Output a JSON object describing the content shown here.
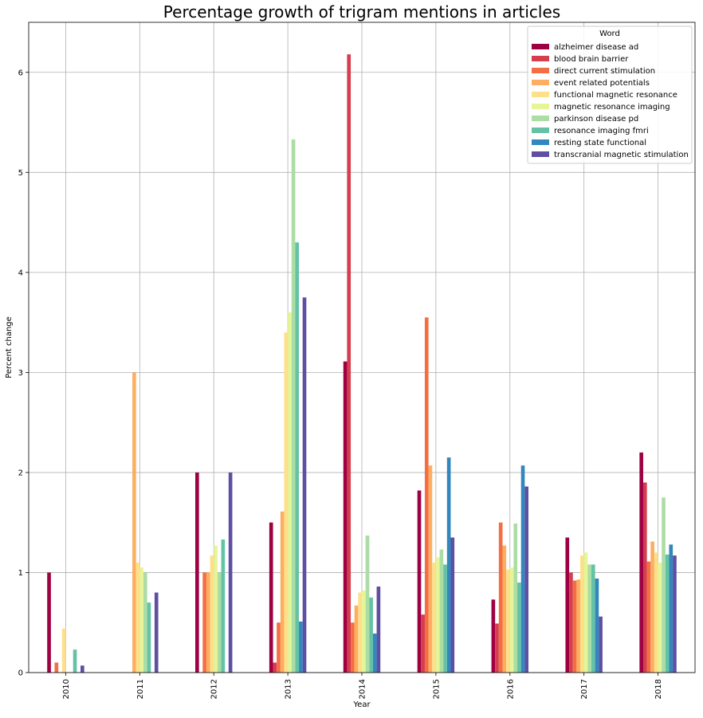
{
  "chart_data": {
    "type": "bar",
    "title": "Percentage growth of trigram mentions in articles",
    "xlabel": "Year",
    "ylabel": "Percent change",
    "categories": [
      "2010",
      "2011",
      "2012",
      "2013",
      "2014",
      "2015",
      "2016",
      "2017",
      "2018"
    ],
    "ylim": [
      0,
      6.5
    ],
    "yticks": [
      "0",
      "1",
      "2",
      "3",
      "4",
      "5",
      "6"
    ],
    "grid": true,
    "legend": {
      "title": "Word",
      "position": "top-right"
    },
    "series": [
      {
        "name": "alzheimer disease ad",
        "color": "#9e0142",
        "values": [
          1.0,
          0,
          2.0,
          1.5,
          3.11,
          1.82,
          0.73,
          1.35,
          2.2
        ]
      },
      {
        "name": "blood brain barrier",
        "color": "#d53e4f",
        "values": [
          0,
          0,
          0,
          0.1,
          6.18,
          0.58,
          0.49,
          1.0,
          1.9
        ]
      },
      {
        "name": "direct current stimulation",
        "color": "#f46d43",
        "values": [
          0.1,
          0,
          1.0,
          0.5,
          0.5,
          3.55,
          1.5,
          0.92,
          1.11
        ]
      },
      {
        "name": "event related potentials",
        "color": "#fdae61",
        "values": [
          0,
          3.0,
          1.0,
          1.61,
          0.67,
          2.07,
          1.27,
          0.93,
          1.31
        ]
      },
      {
        "name": "functional magnetic resonance",
        "color": "#fee08b",
        "values": [
          0.44,
          1.1,
          1.17,
          3.4,
          0.8,
          1.1,
          1.03,
          1.17,
          1.2
        ]
      },
      {
        "name": "magnetic resonance imaging",
        "color": "#e6f598",
        "values": [
          0,
          1.05,
          1.27,
          3.6,
          0.82,
          1.15,
          1.05,
          1.2,
          1.1
        ]
      },
      {
        "name": "parkinson disease pd",
        "color": "#abdda4",
        "values": [
          0,
          1.0,
          1.0,
          5.33,
          1.37,
          1.23,
          1.49,
          1.08,
          1.75
        ]
      },
      {
        "name": "resonance imaging fmri",
        "color": "#66c2a5",
        "values": [
          0.23,
          0.7,
          1.33,
          4.3,
          0.75,
          1.08,
          0.9,
          1.08,
          1.18
        ]
      },
      {
        "name": "resting state functional",
        "color": "#3288bd",
        "values": [
          0,
          0,
          0,
          0.51,
          0.39,
          2.15,
          2.07,
          0.94,
          1.28
        ]
      },
      {
        "name": "transcranial magnetic stimulation",
        "color": "#5e4fa2",
        "values": [
          0.07,
          0.8,
          2.0,
          3.75,
          0.86,
          1.35,
          1.86,
          0.56,
          1.17
        ]
      }
    ]
  }
}
